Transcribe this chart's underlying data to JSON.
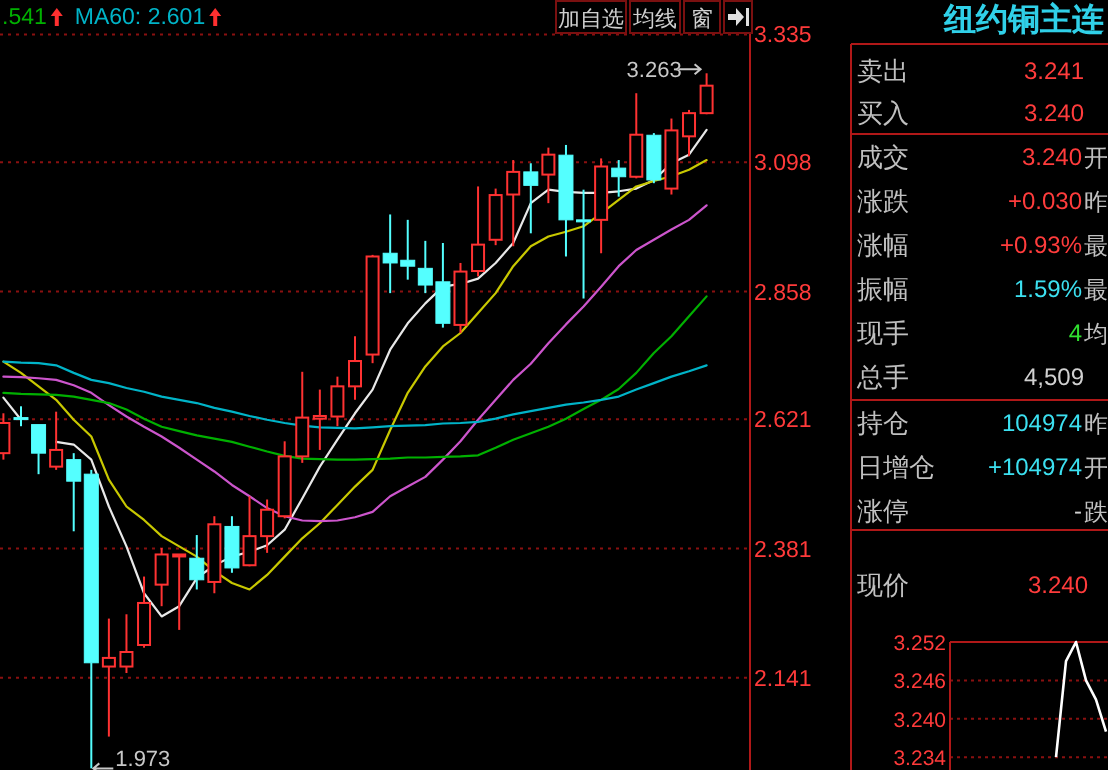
{
  "chart_data": [
    {
      "type": "candlestick",
      "categories": [
        null,
        null,
        null,
        null,
        null,
        null,
        null,
        null,
        null,
        null,
        null,
        null,
        null,
        null,
        null,
        null,
        null,
        null,
        null,
        null,
        null,
        null,
        null,
        null,
        null,
        null,
        null,
        null,
        null,
        null,
        null,
        null,
        null,
        null,
        null,
        null,
        null,
        null,
        null,
        null,
        null
      ],
      "ohlc": [
        [
          2.558,
          2.632,
          2.546,
          2.614
        ],
        [
          2.624,
          2.645,
          2.608,
          2.624
        ],
        [
          2.611,
          2.611,
          2.519,
          2.558
        ],
        [
          2.533,
          2.635,
          2.527,
          2.564
        ],
        [
          2.546,
          2.558,
          2.413,
          2.506
        ],
        [
          2.519,
          2.527,
          1.973,
          2.169
        ],
        [
          2.162,
          2.251,
          2.032,
          2.178
        ],
        [
          2.162,
          2.259,
          2.15,
          2.189
        ],
        [
          2.202,
          2.329,
          2.197,
          2.28
        ],
        [
          2.314,
          2.382,
          2.274,
          2.37
        ],
        [
          2.367,
          2.37,
          2.23,
          2.37
        ],
        [
          2.363,
          2.406,
          2.305,
          2.323
        ],
        [
          2.319,
          2.441,
          2.298,
          2.426
        ],
        [
          2.422,
          2.441,
          2.336,
          2.345
        ],
        [
          2.35,
          2.478,
          2.348,
          2.404
        ],
        [
          2.404,
          2.472,
          2.373,
          2.453
        ],
        [
          2.441,
          2.58,
          2.437,
          2.552
        ],
        [
          2.552,
          2.709,
          2.54,
          2.624
        ],
        [
          2.622,
          2.676,
          2.564,
          2.627
        ],
        [
          2.626,
          2.7,
          2.608,
          2.682
        ],
        [
          2.682,
          2.775,
          2.657,
          2.729
        ],
        [
          2.741,
          2.926,
          2.725,
          2.923
        ],
        [
          2.929,
          3.001,
          2.855,
          2.911
        ],
        [
          2.916,
          2.991,
          2.88,
          2.905
        ],
        [
          2.901,
          2.952,
          2.855,
          2.87
        ],
        [
          2.876,
          2.948,
          2.791,
          2.799
        ],
        [
          2.796,
          2.911,
          2.781,
          2.895
        ],
        [
          2.896,
          3.053,
          2.886,
          2.945
        ],
        [
          2.954,
          3.049,
          2.944,
          3.037
        ],
        [
          3.038,
          3.102,
          2.942,
          3.08
        ],
        [
          3.08,
          3.096,
          2.966,
          3.055
        ],
        [
          3.075,
          3.125,
          3.022,
          3.112
        ],
        [
          3.111,
          3.13,
          2.923,
          2.991
        ],
        [
          2.991,
          3.047,
          2.845,
          2.989
        ],
        [
          2.991,
          3.105,
          2.929,
          3.09
        ],
        [
          3.087,
          3.102,
          3.034,
          3.071
        ],
        [
          3.071,
          3.226,
          3.068,
          3.149
        ],
        [
          3.148,
          3.152,
          3.059,
          3.065
        ],
        [
          3.049,
          3.179,
          3.038,
          3.157
        ],
        [
          3.146,
          3.195,
          3.109,
          3.189
        ],
        [
          3.189,
          3.263,
          3.187,
          3.24
        ]
      ],
      "colors": [
        "#ff3232",
        "#54ffff",
        "#54ffff",
        "#ff3232",
        "#54ffff",
        "#54ffff",
        "#ff3232",
        "#ff3232",
        "#ff3232",
        "#ff3232",
        "#ff3232",
        "#54ffff",
        "#ff3232",
        "#54ffff",
        "#ff3232",
        "#ff3232",
        "#ff3232",
        "#ff3232",
        "#ff3232",
        "#ff3232",
        "#ff3232",
        "#ff3232",
        "#54ffff",
        "#54ffff",
        "#54ffff",
        "#54ffff",
        "#ff3232",
        "#ff3232",
        "#ff3232",
        "#ff3232",
        "#54ffff",
        "#ff3232",
        "#54ffff",
        "#54ffff",
        "#ff3232",
        "#54ffff",
        "#ff3232",
        "#54ffff",
        "#ff3232",
        "#ff3232",
        "#ff3232"
      ],
      "series": [
        {
          "type": "line",
          "color": "#e8e8e8",
          "values": [
            2.661,
            2.62,
            null,
            2.579,
            2.574,
            2.546,
            2.459,
            2.385,
            2.298,
            2.255,
            2.274,
            2.326,
            2.35,
            2.366,
            2.375,
            2.387,
            2.416,
            2.474,
            2.533,
            2.583,
            2.632,
            2.676,
            2.75,
            2.799,
            2.836,
            2.867,
            2.872,
            2.882,
            2.911,
            2.948,
            3.022,
            3.047,
            3.043,
            3.041,
            3.041,
            3.044,
            3.049,
            3.065,
            3.096,
            3.112,
            3.158
          ]
        },
        {
          "type": "line",
          "color": "#c8c800",
          "values": [
            2.728,
            2.707,
            2.682,
            2.657,
            2.62,
            2.589,
            2.509,
            2.459,
            2.434,
            2.404,
            2.385,
            2.366,
            2.339,
            2.317,
            2.305,
            2.332,
            2.366,
            2.4,
            2.428,
            2.462,
            2.496,
            2.527,
            2.601,
            2.67,
            2.719,
            2.756,
            2.781,
            2.818,
            2.855,
            2.905,
            2.942,
            2.96,
            2.969,
            2.979,
            3.003,
            3.028,
            3.053,
            3.063,
            3.072,
            3.084,
            3.102
          ]
        },
        {
          "type": "line",
          "color": "#cc55cc",
          "values": [
            2.7,
            2.699,
            2.697,
            2.694,
            2.684,
            2.67,
            2.647,
            2.626,
            2.607,
            2.589,
            2.568,
            2.546,
            2.524,
            2.499,
            2.478,
            2.456,
            2.441,
            2.433,
            2.432,
            2.433,
            2.439,
            2.449,
            2.478,
            2.496,
            2.514,
            2.546,
            2.58,
            2.62,
            2.657,
            2.694,
            2.724,
            2.762,
            2.797,
            2.83,
            2.867,
            2.905,
            2.935,
            2.954,
            2.973,
            2.991,
            3.018
          ]
        },
        {
          "type": "line",
          "name": ".541",
          "color": "#00b000",
          "values": [
            2.67,
            2.668,
            2.667,
            2.666,
            2.663,
            2.657,
            2.651,
            2.639,
            2.622,
            2.607,
            2.599,
            2.591,
            2.585,
            2.579,
            2.57,
            2.561,
            2.553,
            2.548,
            2.547,
            2.546,
            2.546,
            2.547,
            2.548,
            2.55,
            2.55,
            2.551,
            2.552,
            2.554,
            2.568,
            2.583,
            2.595,
            2.607,
            2.622,
            2.64,
            2.657,
            2.677,
            2.707,
            2.744,
            2.775,
            2.812,
            2.849
          ]
        },
        {
          "type": "line",
          "name": "MA60: 2.601",
          "color": "#00b4c8",
          "values": [
            2.728,
            2.726,
            2.725,
            2.721,
            2.707,
            2.694,
            2.688,
            2.679,
            2.672,
            2.663,
            2.657,
            2.651,
            2.642,
            2.635,
            2.627,
            2.62,
            2.614,
            2.609,
            2.606,
            2.605,
            2.604,
            2.606,
            2.608,
            2.609,
            2.61,
            2.613,
            2.614,
            2.616,
            2.622,
            2.63,
            2.636,
            2.642,
            2.648,
            2.652,
            2.657,
            2.663,
            2.676,
            2.688,
            2.7,
            2.71,
            2.721
          ]
        }
      ],
      "ylim": [
        1.97,
        3.399
      ],
      "yticks": [
        3.335,
        3.098,
        2.858,
        2.621,
        2.381,
        2.141
      ],
      "grid": "y",
      "legend": "top left",
      "annotations": [
        "3.263",
        "1.973",
        "加自选",
        "均线",
        "窗"
      ]
    },
    {
      "type": "other",
      "title": "纽约铜主连",
      "categories": [
        "卖出",
        "买入",
        "成交",
        "涨跌",
        "涨幅",
        "振幅",
        "现手",
        "总手",
        "持仓",
        "日增仓",
        "涨停",
        "现价"
      ],
      "value_labels": [
        "3.241",
        "3.240",
        "3.240",
        "+0.030",
        "+0.93%",
        "1.59%",
        "4",
        "4,509",
        "104974",
        "+104974",
        "-",
        "3.240"
      ],
      "colors": [
        "#ff3c3c",
        "#ff3c3c",
        "#ff3c3c",
        "#ff3c3c",
        "#ff3c3c",
        "#3ce0f0",
        "#30e030",
        "#d0d0d0",
        "#3ce0f0",
        "#3ce0f0",
        "#d0d0d0",
        "#ff3c3c"
      ],
      "annotations": [
        "开",
        "昨",
        "最",
        "最",
        "均",
        "昨",
        "开",
        "跌"
      ]
    },
    {
      "type": "line",
      "categories": [
        null,
        null,
        null,
        null,
        null,
        null,
        null,
        null,
        null,
        null,
        null,
        null,
        null,
        null,
        null,
        null
      ],
      "values": [
        null,
        null,
        null,
        null,
        null,
        null,
        null,
        null,
        null,
        null,
        3.234,
        3.249,
        3.252,
        3.246,
        3.243,
        3.238
      ],
      "color": "#ffffff",
      "ylim": [
        3.232,
        3.252
      ],
      "yticks": [
        3.252,
        3.246,
        {
          "value": 3.24,
          "label": "3.240"
        },
        3.234
      ],
      "grid": "y"
    }
  ]
}
